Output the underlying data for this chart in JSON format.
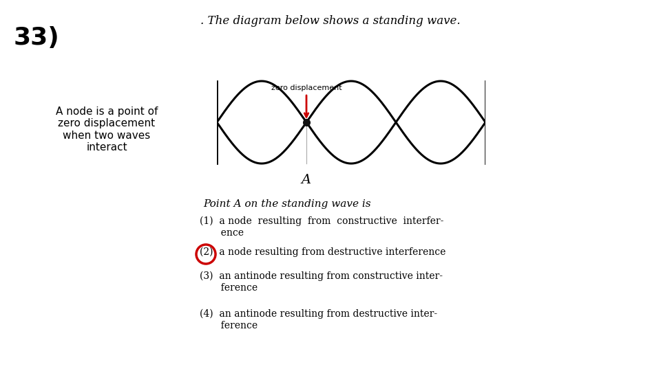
{
  "title_top": ". The diagram below shows a standing wave.",
  "number": "33)",
  "left_text_lines": [
    "A node is a point of",
    "zero displacement",
    "when two waves",
    "interact"
  ],
  "wave_label": "zero displacement",
  "point_label": "A",
  "question_text": "Point A on the standing wave is",
  "option1": "(1)  a node  resulting  from  constructive  interfer-\n       ence",
  "option2": "(2)  a node resulting from destructive interference",
  "option3": "(3)  an antinode resulting from constructive inter-\n       ference",
  "option4": "(4)  an antinode resulting from destructive inter-\n       ference",
  "bg_color": "#ffffff",
  "wave_color": "#000000",
  "arrow_color": "#cc0000",
  "node_color": "#111111",
  "circle_color": "#cc0000"
}
